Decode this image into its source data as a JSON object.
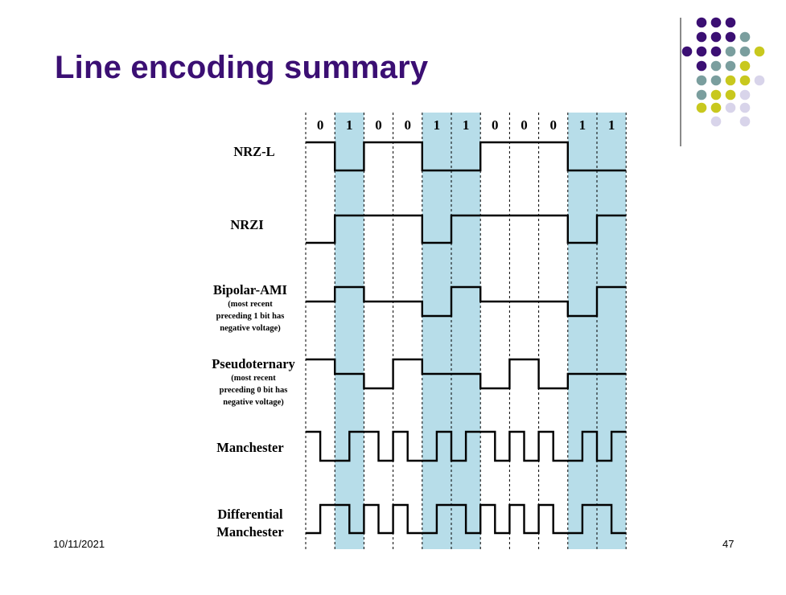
{
  "slide": {
    "title": "Line encoding summary",
    "date": "10/11/2021",
    "page_number": "47"
  },
  "diagram": {
    "bits": [
      "0",
      "1",
      "0",
      "0",
      "1",
      "1",
      "0",
      "0",
      "0",
      "1",
      "1"
    ],
    "rows": [
      {
        "id": "nrz-l",
        "label": [
          "NRZ-L"
        ],
        "note": []
      },
      {
        "id": "nrzi",
        "label": [
          "NRZI"
        ],
        "note": []
      },
      {
        "id": "bipolar-ami",
        "label": [
          "Bipolar-AMI"
        ],
        "note": [
          "(most recent",
          "preceding 1 bit has",
          "negative voltage)"
        ]
      },
      {
        "id": "pseudoternary",
        "label": [
          "Pseudoternary"
        ],
        "note": [
          "(most recent",
          "preceding 0 bit has",
          "negative voltage)"
        ]
      },
      {
        "id": "manchester",
        "label": [
          "Manchester"
        ],
        "note": []
      },
      {
        "id": "differential-manchester",
        "label": [
          "Differential",
          "Manchester"
        ],
        "note": []
      }
    ],
    "colors": {
      "highlight": "#b7dde9",
      "signal": "#000000"
    }
  },
  "decor": {
    "colors": {
      "purple": "#3b0f73",
      "teal": "#7a9e9e",
      "olive": "#c8c81e",
      "lavender": "#d8d4ea",
      "title": "#3b0f73"
    }
  }
}
